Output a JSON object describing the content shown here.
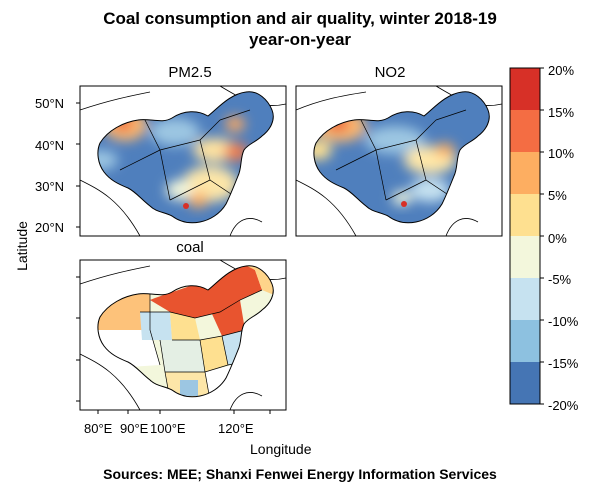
{
  "title_line1": "Coal consumption and air quality, winter 2018-19",
  "title_line2": "year-on-year",
  "panels": {
    "pm25": "PM2.5",
    "no2": "NO2",
    "coal": "coal"
  },
  "axes": {
    "ylabel": "Latitude",
    "xlabel": "Longitude",
    "lat_ticks": [
      "50°N",
      "40°N",
      "30°N",
      "20°N"
    ],
    "lon_ticks": [
      "80°E",
      "90°E",
      "100°E",
      "120°E"
    ]
  },
  "legend": {
    "labels": [
      "20%",
      "15%",
      "10%",
      "5%",
      "0%",
      "-5%",
      "-10%",
      "-15%",
      "-20%"
    ],
    "colors": [
      "#d73027",
      "#f46d43",
      "#fdae61",
      "#fee090",
      "#f3f7dc",
      "#c6e2f0",
      "#8dc1e0",
      "#4575b4"
    ]
  },
  "source": "Sources: MEE; Shanxi Fenwei Energy Information Services"
}
